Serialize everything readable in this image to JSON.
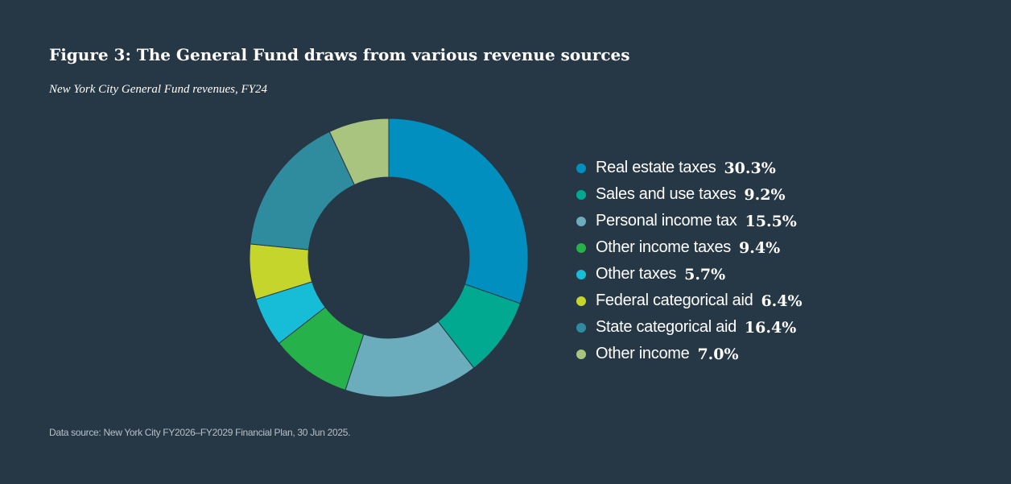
{
  "chart_data": {
    "type": "pie",
    "variant": "donut",
    "title": "Figure 3: The General Fund draws from various revenue sources",
    "subtitle": "New York City General Fund revenues, FY24",
    "source": "Data source: New York City FY2026–FY2029 Financial Plan, 30 Jun 2025.",
    "legend_position": "right",
    "unit": "%",
    "slices": [
      {
        "label": "Real estate taxes",
        "value": 30.3,
        "display": "30.3%",
        "color": "#008fbe"
      },
      {
        "label": "Sales and use taxes",
        "value": 9.2,
        "display": "9.2%",
        "color": "#00a98f"
      },
      {
        "label": "Personal income tax",
        "value": 15.5,
        "display": "15.5%",
        "color": "#6badbc"
      },
      {
        "label": "Other income taxes",
        "value": 9.4,
        "display": "9.4%",
        "color": "#26b14b"
      },
      {
        "label": "Other taxes",
        "value": 5.7,
        "display": "5.7%",
        "color": "#17bdd6"
      },
      {
        "label": "Federal categorical aid",
        "value": 6.4,
        "display": "6.4%",
        "color": "#c6d52b"
      },
      {
        "label": "State categorical aid",
        "value": 16.4,
        "display": "16.4%",
        "color": "#2f8c9e"
      },
      {
        "label": "Other income",
        "value": 7.0,
        "display": "7.0%",
        "color": "#a9c47f"
      }
    ]
  },
  "colors": {
    "background": "#263746"
  }
}
